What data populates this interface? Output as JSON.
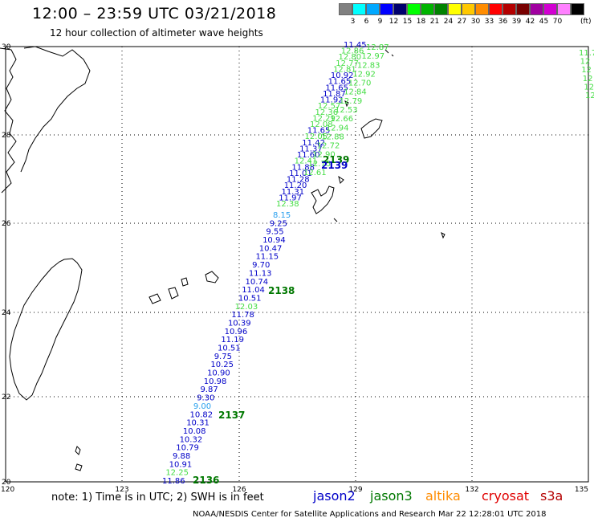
{
  "title": "12:00 – 23:59 UTC 03/21/2018",
  "subtitle": "12 hour collection of altimeter wave heights",
  "legend": {
    "unit": "(ft)",
    "colors": [
      "#808080",
      "#00ffff",
      "#00a8ff",
      "#0000ff",
      "#00006e",
      "#00ff00",
      "#00b400",
      "#008200",
      "#ffff00",
      "#ffc800",
      "#ff8c00",
      "#ff0000",
      "#b40000",
      "#780000",
      "#a000a0",
      "#d200d2",
      "#ff80ff",
      "#000000"
    ],
    "labels": [
      "3",
      "6",
      "9",
      "12",
      "15",
      "18",
      "21",
      "24",
      "27",
      "30",
      "33",
      "36",
      "39",
      "42",
      "45",
      "70"
    ]
  },
  "axes": {
    "lat_labels": [
      "30",
      "28",
      "26",
      "24",
      "22",
      "20"
    ],
    "lon_labels": [
      "120",
      "123",
      "126",
      "129",
      "132",
      "135"
    ]
  },
  "passes": [
    {
      "label": "2136",
      "satellite": "jason3",
      "color": "#007800"
    },
    {
      "label": "2137",
      "satellite": "jason3",
      "color": "#007800"
    },
    {
      "label": "2138",
      "satellite": "jason3",
      "color": "#007800"
    },
    {
      "label": "2139",
      "satellite": "jason3",
      "color": "#007800"
    },
    {
      "label": "2139",
      "satellite": "jason2",
      "color": "#0000c8"
    }
  ],
  "track_main": [
    {
      "v": "11.86",
      "c": "#0000c8"
    },
    {
      "v": "12.25",
      "c": "#44dd44"
    },
    {
      "v": "10.91",
      "c": "#0000c8"
    },
    {
      "v": "9.88",
      "c": "#0000c8"
    },
    {
      "v": "10.79",
      "c": "#0000c8"
    },
    {
      "v": "10.32",
      "c": "#0000c8"
    },
    {
      "v": "10.08",
      "c": "#0000c8"
    },
    {
      "v": "10.31",
      "c": "#0000c8"
    },
    {
      "v": "10.82",
      "c": "#0000c8"
    },
    {
      "v": "9.00",
      "c": "#2aa0ee"
    },
    {
      "v": "9.30",
      "c": "#0000c8"
    },
    {
      "v": "9.87",
      "c": "#0000c8"
    },
    {
      "v": "10.98",
      "c": "#0000c8"
    },
    {
      "v": "10.90",
      "c": "#0000c8"
    },
    {
      "v": "10.25",
      "c": "#0000c8"
    },
    {
      "v": "9.75",
      "c": "#0000c8"
    },
    {
      "v": "10.51",
      "c": "#0000c8"
    },
    {
      "v": "11.19",
      "c": "#0000c8"
    },
    {
      "v": "10.96",
      "c": "#0000c8"
    },
    {
      "v": "10.39",
      "c": "#0000c8"
    },
    {
      "v": "11.78",
      "c": "#0000c8"
    },
    {
      "v": "12.03",
      "c": "#44dd44"
    },
    {
      "v": "10.51",
      "c": "#0000c8"
    },
    {
      "v": "11.04",
      "c": "#0000c8"
    },
    {
      "v": "10.74",
      "c": "#0000c8"
    },
    {
      "v": "11.13",
      "c": "#0000c8"
    },
    {
      "v": "9.70",
      "c": "#0000c8"
    },
    {
      "v": "11.15",
      "c": "#0000c8"
    },
    {
      "v": "10.47",
      "c": "#0000c8"
    },
    {
      "v": "10.94",
      "c": "#0000c8"
    },
    {
      "v": "9.55",
      "c": "#0000c8"
    },
    {
      "v": "9.25",
      "c": "#0000c8"
    },
    {
      "v": "8.15",
      "c": "#2aa0ee"
    }
  ],
  "track_north": [
    {
      "v": "12.38",
      "c": "#44dd44"
    },
    {
      "v": "11.97",
      "c": "#0000c8"
    },
    {
      "v": "11.31",
      "c": "#0000c8"
    },
    {
      "v": "11.20",
      "c": "#0000c8"
    },
    {
      "v": "11.28",
      "c": "#0000c8"
    },
    {
      "v": "11.01",
      "c": "#0000c8"
    },
    {
      "v": "11.88",
      "c": "#0000c8"
    },
    {
      "v": "12.41",
      "c": "#44dd44"
    },
    {
      "v": "11.60",
      "c": "#0000c8"
    },
    {
      "v": "11.37",
      "c": "#0000c8"
    },
    {
      "v": "11.42",
      "c": "#0000c8"
    },
    {
      "v": "12.05",
      "c": "#44dd44"
    },
    {
      "v": "11.65",
      "c": "#0000c8"
    },
    {
      "v": "12.08",
      "c": "#44dd44"
    },
    {
      "v": "12.29",
      "c": "#44dd44"
    },
    {
      "v": "12.36",
      "c": "#44dd44"
    },
    {
      "v": "12.57",
      "c": "#44dd44"
    },
    {
      "v": "11.92",
      "c": "#0000c8"
    },
    {
      "v": "11.87",
      "c": "#0000c8"
    },
    {
      "v": "11.65",
      "c": "#0000c8"
    },
    {
      "v": "11.65",
      "c": "#0000c8"
    },
    {
      "v": "10.92",
      "c": "#0000c8"
    },
    {
      "v": "12.81",
      "c": "#44dd44"
    },
    {
      "v": "12.77",
      "c": "#44dd44"
    },
    {
      "v": "12.80",
      "c": "#44dd44"
    },
    {
      "v": "12.86",
      "c": "#44dd44"
    },
    {
      "v": "11.45",
      "c": "#0000c8"
    }
  ],
  "track_green": [
    {
      "v": "12.61",
      "c": "#44dd44"
    },
    {
      "v": "12.75",
      "c": "#44dd44"
    },
    {
      "v": "12.90",
      "c": "#44dd44"
    },
    {
      "v": "12.72",
      "c": "#44dd44"
    },
    {
      "v": "12.88",
      "c": "#44dd44"
    },
    {
      "v": "12.94",
      "c": "#44dd44"
    },
    {
      "v": "12.66",
      "c": "#44dd44"
    },
    {
      "v": "12.53",
      "c": "#44dd44"
    },
    {
      "v": "12.79",
      "c": "#44dd44"
    },
    {
      "v": "12.84",
      "c": "#44dd44"
    },
    {
      "v": "12.70",
      "c": "#44dd44"
    },
    {
      "v": "12.92",
      "c": "#44dd44"
    },
    {
      "v": "12.83",
      "c": "#44dd44"
    },
    {
      "v": "12.97",
      "c": "#44dd44"
    },
    {
      "v": "12.87",
      "c": "#44dd44"
    }
  ],
  "track_edge": [
    {
      "v": "11.7",
      "c": "#44dd44"
    },
    {
      "v": "12",
      "c": "#44dd44"
    },
    {
      "v": "12",
      "c": "#44dd44"
    },
    {
      "v": "12",
      "c": "#44dd44"
    },
    {
      "v": "12",
      "c": "#44dd44"
    },
    {
      "v": "12",
      "c": "#44dd44"
    }
  ],
  "note": "note: 1) Time is in UTC; 2) SWH is in feet",
  "satellites": [
    {
      "name": "jason2",
      "color": "#0000c8"
    },
    {
      "name": "jason3",
      "color": "#007800"
    },
    {
      "name": "altika",
      "color": "#ff8c00"
    },
    {
      "name": "cryosat",
      "color": "#e00000"
    },
    {
      "name": "s3a",
      "color": "#b40000"
    }
  ],
  "footer": "NOAA/NESDIS Center for Satellite Applications and Research   Mar 22 12:28:01 UTC 2018"
}
